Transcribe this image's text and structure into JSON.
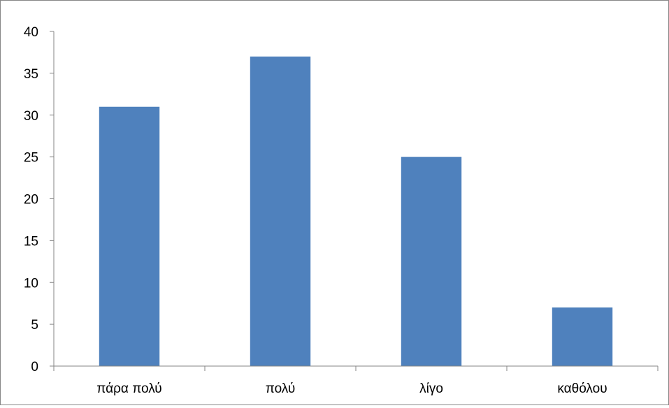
{
  "chart_data": {
    "type": "bar",
    "categories": [
      "πάρα πολύ",
      "πολύ",
      "λίγο",
      "καθόλου"
    ],
    "values": [
      31,
      37,
      25,
      7
    ],
    "title": "",
    "xlabel": "",
    "ylabel": "",
    "ylim": [
      0,
      40
    ],
    "yticks": [
      0,
      5,
      10,
      15,
      20,
      25,
      30,
      35,
      40
    ],
    "grid": false,
    "legend": "none",
    "bar_color": "#4f81bd",
    "axis_color": "#868686"
  }
}
